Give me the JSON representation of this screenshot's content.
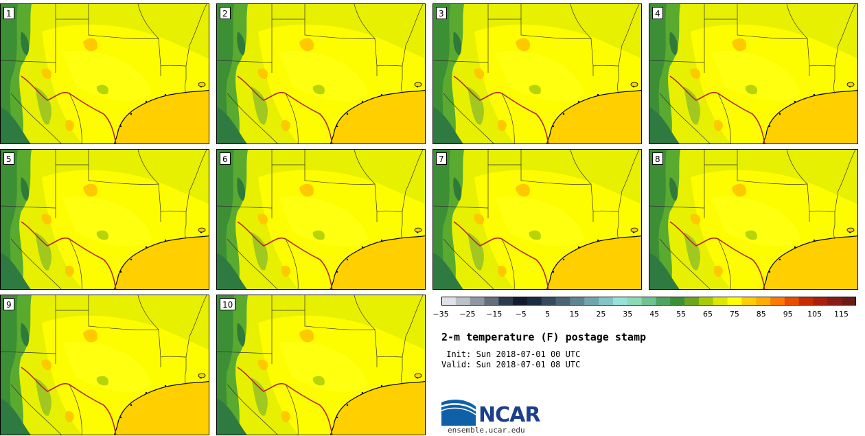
{
  "panels": [
    {
      "label": "1"
    },
    {
      "label": "2"
    },
    {
      "label": "3"
    },
    {
      "label": "4"
    },
    {
      "label": "5"
    },
    {
      "label": "6"
    },
    {
      "label": "7"
    },
    {
      "label": "8"
    },
    {
      "label": "9"
    },
    {
      "label": "10"
    }
  ],
  "colorbar": {
    "colors": [
      "#dfe2e8",
      "#bcc1c8",
      "#8f97a3",
      "#646e7c",
      "#2c3a4e",
      "#121b2e",
      "#1a2b44",
      "#35495f",
      "#4c6574",
      "#5f8690",
      "#71a5ac",
      "#84c4c6",
      "#97e2d8",
      "#8fd9b7",
      "#71c291",
      "#4fa464",
      "#3b8f36",
      "#6ba61d",
      "#a8cb08",
      "#dde800",
      "#ffff00",
      "#ffcd00",
      "#ffae00",
      "#ff7a00",
      "#e84d00",
      "#c72b00",
      "#a81f0c",
      "#881c14",
      "#6c1a14"
    ],
    "tick_labels": [
      "−35",
      "−25",
      "−15",
      "−5",
      "5",
      "15",
      "25",
      "35",
      "45",
      "55",
      "65",
      "75",
      "85",
      "95",
      "105",
      "115"
    ],
    "min": -40,
    "max": 120,
    "step": 5.5
  },
  "title": "2-m temperature (F) postage stamp",
  "init": " Init: Sun 2018-07-01 00 UTC",
  "valid": "Valid: Sun 2018-07-01 08 UTC",
  "logo_text": "NCAR",
  "site": "ensemble.ucar.edu"
}
